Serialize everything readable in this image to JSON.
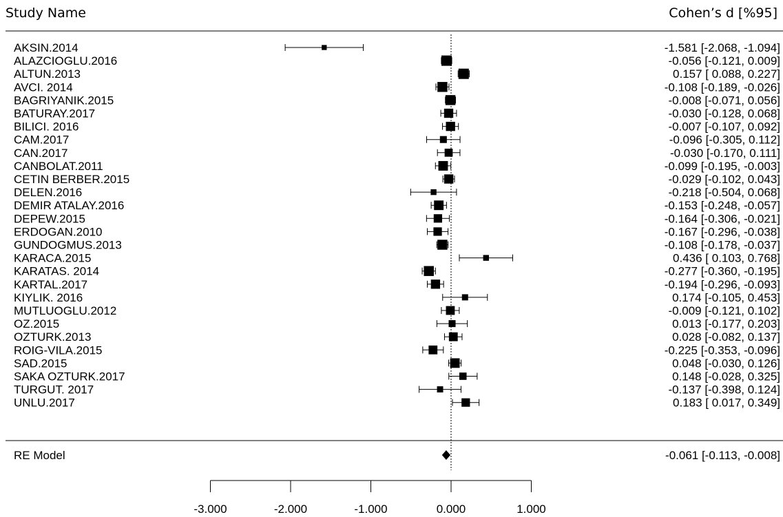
{
  "header": {
    "study_col": "Study Name",
    "effect_col": "Cohen’s d [%95]"
  },
  "chart_data": {
    "type": "forest",
    "x_ticks": [
      -3,
      -2,
      -1,
      0,
      1
    ],
    "x_tick_labels": [
      "-3.000",
      "-2.000",
      "-1.000",
      "0.000",
      "1.000"
    ],
    "reference_line": 0,
    "studies": [
      {
        "name": "AKSIN.2014",
        "d": -1.581,
        "lo": -2.068,
        "hi": -1.094,
        "ci_text": "-1.581 [-2.068, -1.094]",
        "weight": 0.3
      },
      {
        "name": "ALAZCIOGLU.2016",
        "d": -0.056,
        "lo": -0.121,
        "hi": 0.009,
        "ci_text": "-0.056 [-0.121,  0.009]",
        "weight": 1.0
      },
      {
        "name": "ALTUN.2013",
        "d": 0.157,
        "lo": 0.088,
        "hi": 0.227,
        "ci_text": "0.157 [ 0.088,  0.227]",
        "weight": 1.0
      },
      {
        "name": "AVCI. 2014",
        "d": -0.108,
        "lo": -0.189,
        "hi": -0.026,
        "ci_text": "-0.108 [-0.189, -0.026]",
        "weight": 0.95
      },
      {
        "name": "BAGRIYANIK.2015",
        "d": -0.008,
        "lo": -0.071,
        "hi": 0.056,
        "ci_text": "-0.008 [-0.071,  0.056]",
        "weight": 0.95
      },
      {
        "name": "BATURAY.2017",
        "d": -0.03,
        "lo": -0.128,
        "hi": 0.068,
        "ci_text": "-0.030 [-0.128,  0.068]",
        "weight": 0.85
      },
      {
        "name": "BILICI. 2016",
        "d": -0.007,
        "lo": -0.107,
        "hi": 0.092,
        "ci_text": "-0.007 [-0.107,  0.092]",
        "weight": 0.85
      },
      {
        "name": "CAM.2017",
        "d": -0.096,
        "lo": -0.305,
        "hi": 0.112,
        "ci_text": "-0.096 [-0.305,  0.112]",
        "weight": 0.55
      },
      {
        "name": "CAN.2017",
        "d": -0.03,
        "lo": -0.17,
        "hi": 0.111,
        "ci_text": "-0.030 [-0.170,  0.111]",
        "weight": 0.7
      },
      {
        "name": "CANBOLAT.2011",
        "d": -0.099,
        "lo": -0.195,
        "hi": -0.003,
        "ci_text": "-0.099 [-0.195, -0.003]",
        "weight": 0.9
      },
      {
        "name": "CETIN BERBER.2015",
        "d": -0.029,
        "lo": -0.102,
        "hi": 0.043,
        "ci_text": "-0.029 [-0.102,  0.043]",
        "weight": 0.85
      },
      {
        "name": "DELEN.2016",
        "d": -0.218,
        "lo": -0.504,
        "hi": 0.068,
        "ci_text": "-0.218 [-0.504,  0.068]",
        "weight": 0.4
      },
      {
        "name": "DEMIR ATALAY.2016",
        "d": -0.153,
        "lo": -0.248,
        "hi": -0.057,
        "ci_text": "-0.153 [-0.248, -0.057]",
        "weight": 0.9
      },
      {
        "name": "DEPEW.2015",
        "d": -0.164,
        "lo": -0.306,
        "hi": -0.021,
        "ci_text": "-0.164 [-0.306, -0.021]",
        "weight": 0.75
      },
      {
        "name": "ERDOGAN.2010",
        "d": -0.167,
        "lo": -0.296,
        "hi": -0.038,
        "ci_text": "-0.167 [-0.296, -0.038]",
        "weight": 0.75
      },
      {
        "name": "GUNDOGMUS.2013",
        "d": -0.108,
        "lo": -0.178,
        "hi": -0.037,
        "ci_text": "-0.108 [-0.178, -0.037]",
        "weight": 0.95
      },
      {
        "name": "KARACA.2015",
        "d": 0.436,
        "lo": 0.103,
        "hi": 0.768,
        "ci_text": "0.436 [ 0.103,  0.768]",
        "weight": 0.4
      },
      {
        "name": "KARATAS. 2014",
        "d": -0.277,
        "lo": -0.36,
        "hi": -0.195,
        "ci_text": "-0.277 [-0.360, -0.195]",
        "weight": 0.95
      },
      {
        "name": "KARTAL.2017",
        "d": -0.194,
        "lo": -0.296,
        "hi": -0.093,
        "ci_text": "-0.194 [-0.296, -0.093]",
        "weight": 0.85
      },
      {
        "name": "KIYLIK. 2016",
        "d": 0.174,
        "lo": -0.105,
        "hi": 0.453,
        "ci_text": "0.174 [-0.105,  0.453]",
        "weight": 0.45
      },
      {
        "name": "MUTLUOGLU.2012",
        "d": -0.009,
        "lo": -0.121,
        "hi": 0.102,
        "ci_text": "-0.009 [-0.121,  0.102]",
        "weight": 0.8
      },
      {
        "name": "OZ.2015",
        "d": 0.013,
        "lo": -0.177,
        "hi": 0.203,
        "ci_text": "0.013 [-0.177,  0.203]",
        "weight": 0.55
      },
      {
        "name": "OZTURK.2013",
        "d": 0.028,
        "lo": -0.082,
        "hi": 0.137,
        "ci_text": "0.028 [-0.082,  0.137]",
        "weight": 0.8
      },
      {
        "name": "ROIG-VILA.2015",
        "d": -0.225,
        "lo": -0.353,
        "hi": -0.096,
        "ci_text": "-0.225 [-0.353, -0.096]",
        "weight": 0.8
      },
      {
        "name": "SAD.2015",
        "d": 0.048,
        "lo": -0.03,
        "hi": 0.126,
        "ci_text": "0.048 [-0.030,  0.126]",
        "weight": 0.9
      },
      {
        "name": "SAKA OZTURK.2017",
        "d": 0.148,
        "lo": -0.028,
        "hi": 0.325,
        "ci_text": "0.148 [-0.028,  0.325]",
        "weight": 0.6
      },
      {
        "name": "TURGUT. 2017",
        "d": -0.137,
        "lo": -0.398,
        "hi": 0.124,
        "ci_text": "-0.137 [-0.398,  0.124]",
        "weight": 0.45
      },
      {
        "name": "UNLU.2017",
        "d": 0.183,
        "lo": 0.017,
        "hi": 0.349,
        "ci_text": "0.183 [ 0.017,  0.349]",
        "weight": 0.75
      }
    ],
    "summary": {
      "name": "RE Model",
      "d": -0.061,
      "lo": -0.113,
      "hi": -0.008,
      "ci_text": "-0.061 [-0.113, -0.008]"
    }
  }
}
